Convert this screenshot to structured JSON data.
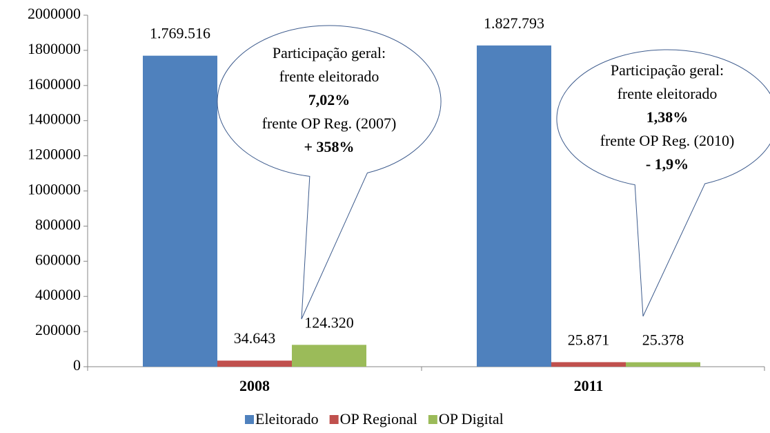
{
  "chart_data": {
    "type": "bar",
    "categories": [
      "2008",
      "2011"
    ],
    "series": [
      {
        "name": "Eleitorado",
        "color": "#4f81bd",
        "values": [
          1769516,
          1827793
        ],
        "value_labels": [
          "1.769.516",
          "1.827.793"
        ]
      },
      {
        "name": "OP Regional",
        "color": "#c0504d",
        "values": [
          34643,
          25871
        ],
        "value_labels": [
          "34.643",
          "25.871"
        ]
      },
      {
        "name": "OP Digital",
        "color": "#9bbb59",
        "values": [
          124320,
          25378
        ],
        "value_labels": [
          "124.320",
          "25.378"
        ]
      }
    ],
    "ylim": [
      0,
      2000000
    ],
    "yticks": [
      0,
      200000,
      400000,
      600000,
      800000,
      1000000,
      1200000,
      1400000,
      1600000,
      1800000,
      2000000
    ],
    "legend": "bottom",
    "annotations": [
      {
        "lines": [
          "Participação geral:",
          "frente eleitorado",
          "7,02%",
          "frente OP Reg.  (2007)",
          "+ 358%"
        ]
      },
      {
        "lines": [
          "Participação geral:",
          "frente eleitorado",
          "1,38%",
          "frente OP Reg. (2010)",
          "- 1,9%"
        ]
      }
    ]
  }
}
